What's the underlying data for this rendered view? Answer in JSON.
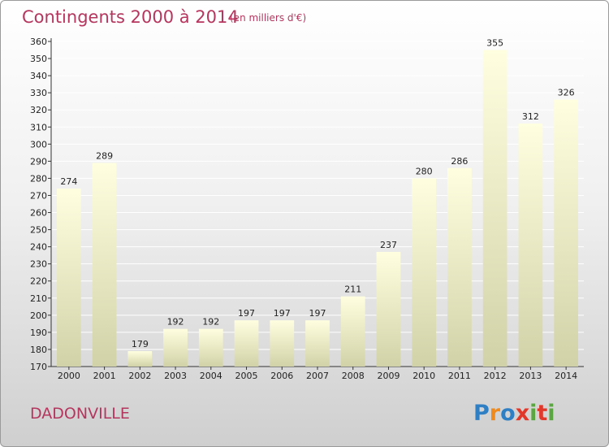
{
  "chart_data": {
    "type": "bar",
    "title": "Contingents 2000 à 2014",
    "subtitle": "(en milliers d'€)",
    "categories": [
      "2000",
      "2001",
      "2002",
      "2003",
      "2004",
      "2005",
      "2006",
      "2007",
      "2008",
      "2009",
      "2010",
      "2011",
      "2012",
      "2013",
      "2014"
    ],
    "values": [
      274,
      289,
      179,
      192,
      192,
      197,
      197,
      197,
      211,
      237,
      280,
      286,
      355,
      312,
      326
    ],
    "ylim": [
      170,
      360
    ],
    "ytick_step": 10,
    "grid": true,
    "xlabel": "",
    "ylabel": ""
  },
  "footer": {
    "place": "DADONVILLE",
    "logo": "Proxiti"
  },
  "colors": {
    "bar_top": "#ffffe0",
    "bar_bottom": "#d2d2a8",
    "grid": "#ffffff",
    "title": "#b5365e",
    "logo_letters": [
      "#2f7fc4",
      "#f08a1c",
      "#2f7fc4",
      "#e0392b",
      "#5aa640",
      "#e0392b",
      "#5aa640"
    ]
  }
}
